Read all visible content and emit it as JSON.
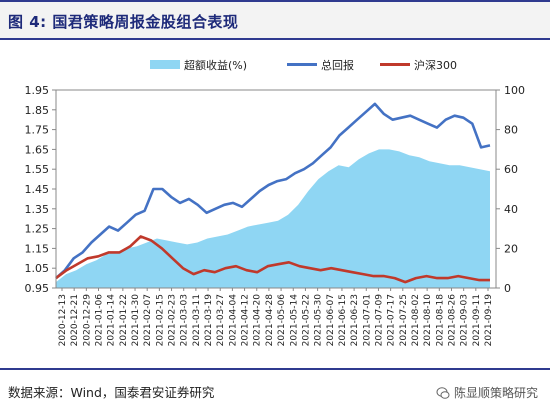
{
  "title": "图 4:  国君策略周报金股组合表现",
  "source": "数据来源：Wind，国泰君安证券研究",
  "watermark": "陈显顺策略研究",
  "chart_data": {
    "type": "line",
    "legend": [
      {
        "name": "超额收益(%)",
        "color": "#8fd6f3",
        "kind": "area"
      },
      {
        "name": "总回报",
        "color": "#4472c4",
        "kind": "line"
      },
      {
        "name": "沪深300",
        "color": "#c0392b",
        "kind": "line"
      }
    ],
    "legend_position": "top",
    "y_left": {
      "min": 0.95,
      "max": 1.95,
      "ticks": [
        "0.95",
        "1.05",
        "1.15",
        "1.25",
        "1.35",
        "1.45",
        "1.55",
        "1.65",
        "1.75",
        "1.85",
        "1.95"
      ]
    },
    "y_right": {
      "min": 0,
      "max": 100,
      "ticks": [
        "0",
        "20",
        "40",
        "60",
        "80",
        "100"
      ]
    },
    "x_labels": [
      "2020-12-13",
      "2020-12-21",
      "2020-12-29",
      "2021-01-06",
      "2021-01-14",
      "2021-01-22",
      "2021-01-30",
      "2021-02-07",
      "2021-02-15",
      "2021-02-23",
      "2021-03-03",
      "2021-03-11",
      "2021-03-19",
      "2021-03-27",
      "2021-04-04",
      "2021-04-12",
      "2021-04-20",
      "2021-04-28",
      "2021-05-06",
      "2021-05-14",
      "2021-05-22",
      "2021-05-30",
      "2021-06-07",
      "2021-06-15",
      "2021-06-23",
      "2021-07-01",
      "2021-07-09",
      "2021-07-17",
      "2021-07-25",
      "2021-08-02",
      "2021-08-10",
      "2021-08-18",
      "2021-08-26",
      "2021-09-03",
      "2021-09-11",
      "2021-09-19"
    ],
    "grid": false,
    "series": [
      {
        "name": "超额收益(%)",
        "axis": "right",
        "values": [
          3,
          7,
          9,
          12,
          14,
          17,
          18,
          20,
          21,
          23,
          25,
          24,
          23,
          22,
          23,
          25,
          26,
          27,
          29,
          31,
          32,
          33,
          34,
          37,
          42,
          49,
          55,
          59,
          62,
          61,
          65,
          68,
          70,
          70,
          69,
          67,
          66,
          64,
          63,
          62,
          62,
          61,
          60,
          59
        ]
      },
      {
        "name": "总回报",
        "axis": "left",
        "values": [
          1.0,
          1.04,
          1.1,
          1.13,
          1.18,
          1.22,
          1.26,
          1.24,
          1.28,
          1.32,
          1.34,
          1.45,
          1.45,
          1.41,
          1.38,
          1.4,
          1.37,
          1.33,
          1.35,
          1.37,
          1.38,
          1.36,
          1.4,
          1.44,
          1.47,
          1.49,
          1.5,
          1.53,
          1.55,
          1.58,
          1.62,
          1.66,
          1.72,
          1.76,
          1.8,
          1.84,
          1.88,
          1.83,
          1.8,
          1.81,
          1.82,
          1.8,
          1.78,
          1.76,
          1.8,
          1.82,
          1.81,
          1.78,
          1.66,
          1.67
        ]
      },
      {
        "name": "沪深300",
        "axis": "left",
        "values": [
          1.0,
          1.04,
          1.07,
          1.1,
          1.11,
          1.13,
          1.13,
          1.16,
          1.21,
          1.19,
          1.15,
          1.1,
          1.05,
          1.02,
          1.04,
          1.03,
          1.05,
          1.06,
          1.04,
          1.03,
          1.06,
          1.07,
          1.08,
          1.06,
          1.05,
          1.04,
          1.05,
          1.04,
          1.03,
          1.02,
          1.01,
          1.01,
          1.0,
          0.98,
          1.0,
          1.01,
          1.0,
          1.0,
          1.01,
          1.0,
          0.99,
          0.99
        ]
      }
    ]
  }
}
